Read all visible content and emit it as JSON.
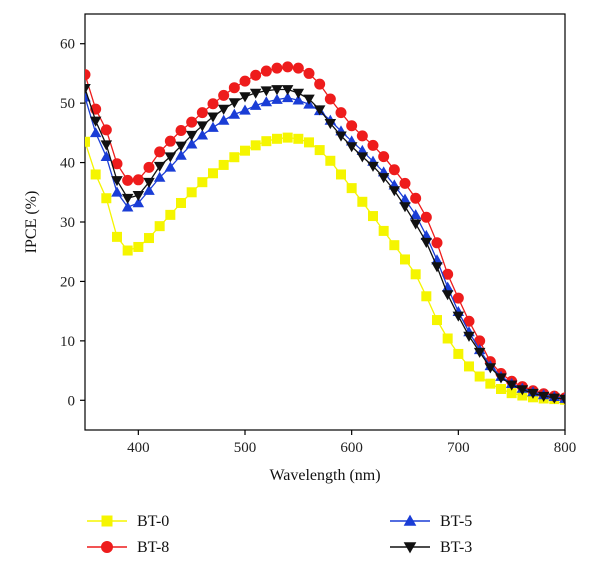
{
  "chart_data": {
    "type": "line",
    "xlabel": "Wavelength (nm)",
    "ylabel": "IPCE (%)",
    "xlim": [
      350,
      800
    ],
    "ylim": [
      -5,
      65
    ],
    "xticks": [
      400,
      500,
      600,
      700,
      800
    ],
    "yticks": [
      0,
      10,
      20,
      30,
      40,
      50,
      60
    ],
    "grid": false,
    "legend_position": "bottom",
    "x": [
      350,
      360,
      370,
      380,
      390,
      400,
      410,
      420,
      430,
      440,
      450,
      460,
      470,
      480,
      490,
      500,
      510,
      520,
      530,
      540,
      550,
      560,
      570,
      580,
      590,
      600,
      610,
      620,
      630,
      640,
      650,
      660,
      670,
      680,
      690,
      700,
      710,
      720,
      730,
      740,
      750,
      760,
      770,
      780,
      790,
      800
    ],
    "series": [
      {
        "name": "BT-0",
        "color": "#f5f500",
        "marker": "square",
        "values": [
          43.5,
          38.0,
          34.0,
          27.5,
          25.2,
          25.8,
          27.3,
          29.3,
          31.2,
          33.2,
          35.0,
          36.7,
          38.2,
          39.6,
          40.9,
          42.0,
          42.9,
          43.6,
          44.0,
          44.2,
          44.0,
          43.4,
          42.1,
          40.3,
          38.0,
          35.7,
          33.4,
          31.0,
          28.5,
          26.1,
          23.7,
          21.2,
          17.5,
          13.5,
          10.4,
          7.8,
          5.7,
          4.0,
          2.8,
          1.9,
          1.2,
          0.8,
          0.5,
          0.3,
          0.2,
          0.1
        ]
      },
      {
        "name": "BT-8",
        "color": "#ee1c1c",
        "marker": "circle",
        "values": [
          54.8,
          49.0,
          45.5,
          39.8,
          37.0,
          37.1,
          39.2,
          41.8,
          43.6,
          45.4,
          46.8,
          48.4,
          49.9,
          51.3,
          52.6,
          53.7,
          54.7,
          55.4,
          55.9,
          56.1,
          55.9,
          55.0,
          53.2,
          50.7,
          48.4,
          46.2,
          44.5,
          42.9,
          41.0,
          38.8,
          36.5,
          34.0,
          30.8,
          26.5,
          21.2,
          17.2,
          13.3,
          10.0,
          6.5,
          4.5,
          3.2,
          2.3,
          1.6,
          1.1,
          0.7,
          0.4
        ]
      },
      {
        "name": "BT-5",
        "color": "#1a3dd6",
        "marker": "triangle-up",
        "values": [
          51.0,
          45.0,
          41.0,
          35.0,
          32.5,
          33.2,
          35.3,
          37.5,
          39.2,
          41.2,
          43.1,
          44.6,
          45.9,
          47.1,
          48.1,
          48.8,
          49.6,
          50.2,
          50.6,
          50.9,
          50.5,
          49.8,
          48.7,
          47.1,
          45.3,
          43.6,
          42.0,
          40.2,
          38.4,
          36.2,
          33.8,
          31.2,
          27.7,
          23.6,
          19.0,
          14.9,
          11.5,
          8.5,
          5.8,
          4.0,
          2.8,
          2.0,
          1.4,
          0.9,
          0.6,
          0.3
        ]
      },
      {
        "name": "BT-3",
        "color": "#111111",
        "marker": "triangle-down",
        "values": [
          52.5,
          47.0,
          43.0,
          37.0,
          34.0,
          34.5,
          36.7,
          39.4,
          41.0,
          42.8,
          44.6,
          46.2,
          47.7,
          49.0,
          50.1,
          51.1,
          51.7,
          52.1,
          52.3,
          52.3,
          51.7,
          50.7,
          48.9,
          46.6,
          44.5,
          42.7,
          41.0,
          39.4,
          37.5,
          35.3,
          32.6,
          29.7,
          26.6,
          22.5,
          17.8,
          14.2,
          10.8,
          8.1,
          5.5,
          3.8,
          2.6,
          1.8,
          1.2,
          0.7,
          0.4,
          0.2
        ]
      }
    ]
  }
}
